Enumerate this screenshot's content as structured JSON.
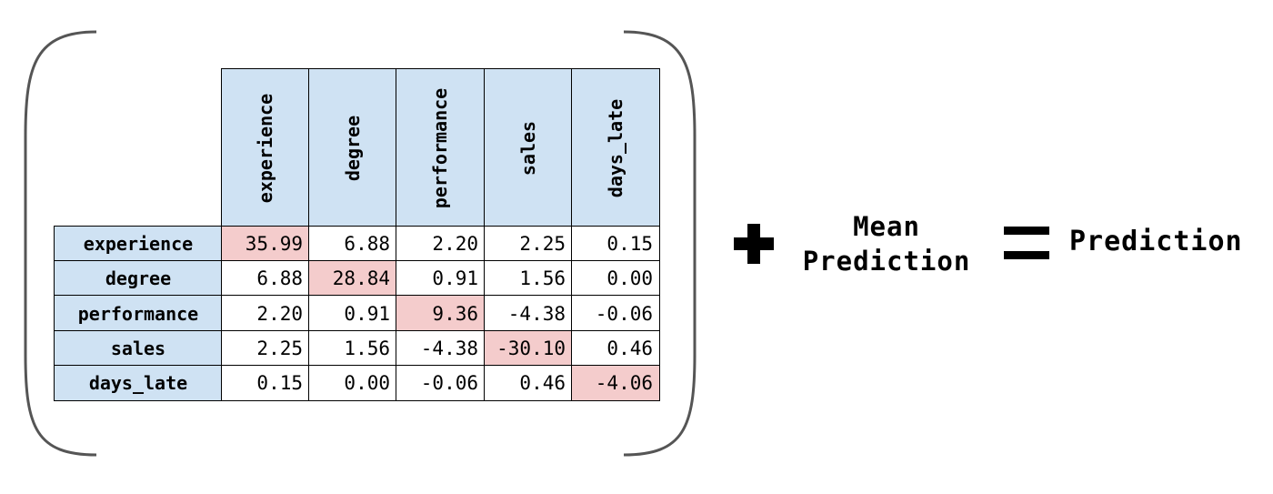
{
  "matrix": {
    "columns": [
      "experience",
      "degree",
      "performance",
      "sales",
      "days_late"
    ],
    "rows": [
      {
        "label": "experience",
        "values": [
          "35.99",
          "6.88",
          "2.20",
          "2.25",
          "0.15"
        ]
      },
      {
        "label": "degree",
        "values": [
          "6.88",
          "28.84",
          "0.91",
          "1.56",
          "0.00"
        ]
      },
      {
        "label": "performance",
        "values": [
          "2.20",
          "0.91",
          "9.36",
          "-4.38",
          "-0.06"
        ]
      },
      {
        "label": "sales",
        "values": [
          "2.25",
          "1.56",
          "-4.38",
          "-30.10",
          "0.46"
        ]
      },
      {
        "label": "days_late",
        "values": [
          "0.15",
          "0.00",
          "-0.06",
          "0.46",
          "-4.06"
        ]
      }
    ]
  },
  "colors": {
    "header_bg": "#cfe2f3",
    "diagonal_bg": "#f4cccc"
  },
  "equation": {
    "plus_icon": "plus-icon",
    "mean_prediction": [
      "Mean",
      "Prediction"
    ],
    "equals_icon": "equals-icon",
    "result": "Prediction"
  }
}
